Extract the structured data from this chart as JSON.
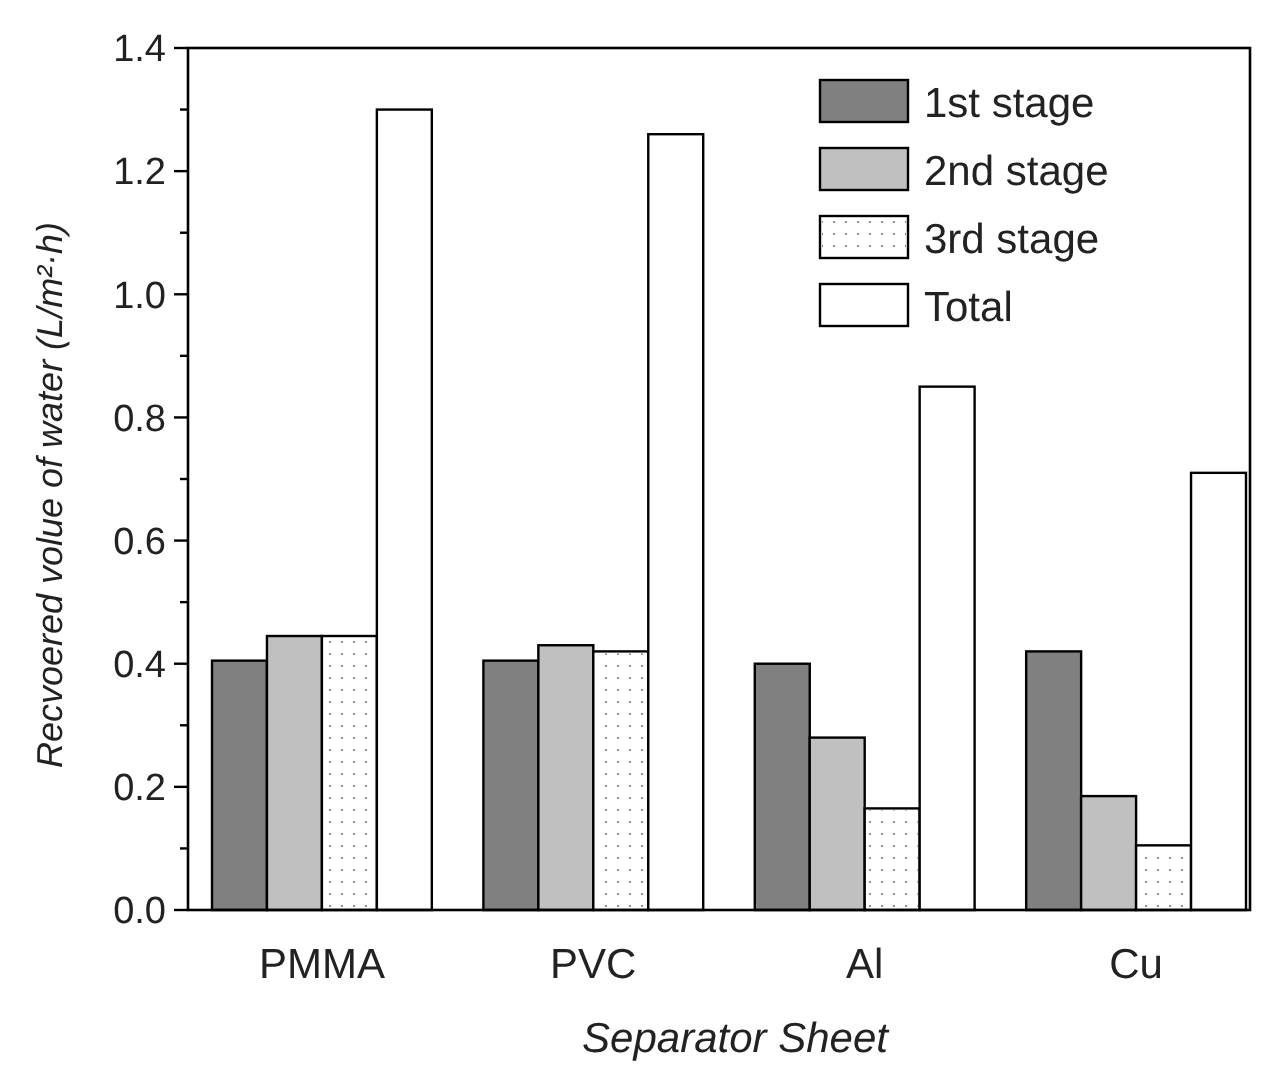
{
  "chart_data": {
    "type": "bar",
    "xlabel": "Separator Sheet",
    "ylabel": "Recvoered volue of water (L/m²·h)",
    "categories": [
      "PMMA",
      "PVC",
      "Al",
      "Cu"
    ],
    "series": [
      {
        "name": "1st stage",
        "color": "#808080",
        "values": [
          0.405,
          0.405,
          0.4,
          0.42
        ]
      },
      {
        "name": "2nd stage",
        "color": "#c0c0c0",
        "values": [
          0.445,
          0.43,
          0.28,
          0.185
        ]
      },
      {
        "name": "3rd stage",
        "color": "#ffffff",
        "values": [
          0.445,
          0.42,
          0.165,
          0.105
        ]
      },
      {
        "name": "Total",
        "color": "#ffffff",
        "values": [
          1.3,
          1.26,
          0.85,
          0.71
        ]
      }
    ],
    "ylim": [
      0,
      1.4
    ],
    "yticks": [
      {
        "value": 0,
        "label": "0.0"
      },
      {
        "value": 0.1,
        "label": null
      },
      {
        "value": 0.2,
        "label": "0.2"
      },
      {
        "value": 0.3,
        "label": null
      },
      {
        "value": 0.4,
        "label": "0.4"
      },
      {
        "value": 0.5,
        "label": null
      },
      {
        "value": 0.6,
        "label": "0.6"
      },
      {
        "value": 0.7,
        "label": null
      },
      {
        "value": 0.8,
        "label": "0.8"
      },
      {
        "value": 0.9,
        "label": null
      },
      {
        "value": 1.0,
        "label": "1.0"
      },
      {
        "value": 1.1,
        "label": null
      },
      {
        "value": 1.2,
        "label": "1.2"
      },
      {
        "value": 1.3,
        "label": null
      },
      {
        "value": 1.4,
        "label": "1.4"
      }
    ],
    "legend": "top right",
    "grid": false
  }
}
